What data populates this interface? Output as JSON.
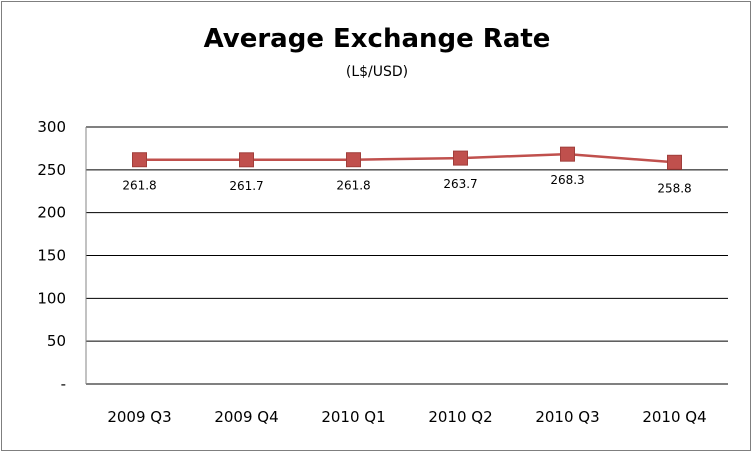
{
  "chart_data": {
    "type": "line",
    "title": "Average Exchange Rate",
    "subtitle": "(L$/USD)",
    "xlabel": "",
    "ylabel": "",
    "categories": [
      "2009 Q3",
      "2009 Q4",
      "2010 Q1",
      "2010 Q2",
      "2010 Q3",
      "2010 Q4"
    ],
    "series": [
      {
        "values": [
          261.8,
          261.7,
          261.8,
          263.7,
          268.3,
          258.8
        ],
        "data_labels": [
          "261.8",
          "261.7",
          "261.8",
          "263.7",
          "268.3",
          "258.8"
        ],
        "color": "#c0504d"
      }
    ],
    "ylim": [
      0,
      300
    ],
    "yticks": [
      0,
      50,
      100,
      150,
      200,
      250,
      300
    ],
    "ytick_labels": [
      "-",
      "50",
      "100",
      "150",
      "200",
      "250",
      "300"
    ],
    "grid": true,
    "legend": "none"
  }
}
